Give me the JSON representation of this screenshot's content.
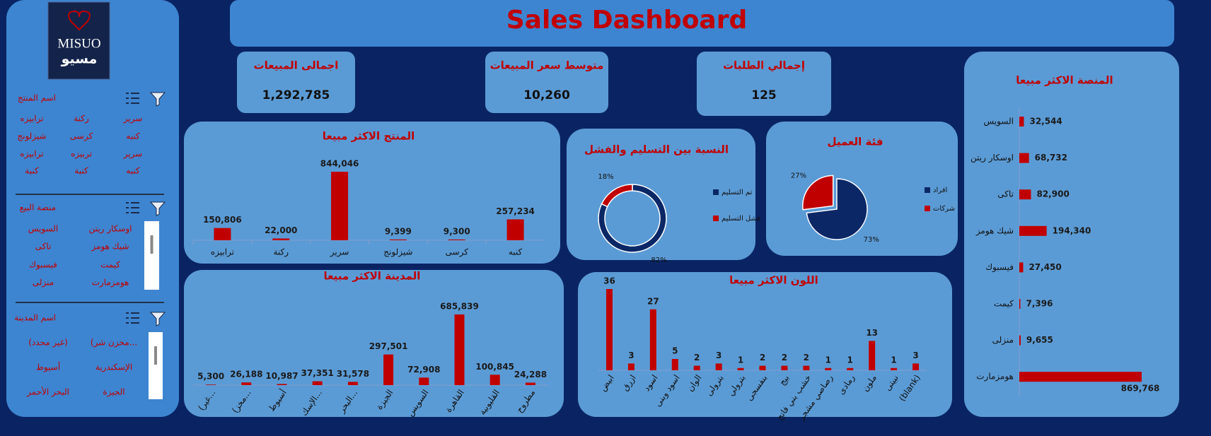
{
  "header": {
    "title": "Sales Dashboard"
  },
  "logo": {
    "name": "MISUO",
    "name_ar": "مسيو"
  },
  "slicers": [
    {
      "title": "اسم المنتج",
      "items": [
        "سرير",
        "ركنة",
        "ترابيزه",
        "كنبه",
        "كرسى",
        "شيزلونج",
        "سرير",
        "تربيزه",
        "ترابيزه",
        "كنبه",
        "كنبة",
        "كنبة"
      ]
    },
    {
      "title": "منصة البيع",
      "items": [
        "اوسكار ريتن",
        "السويس",
        "شيك هومز",
        "تاكى",
        "كيمت",
        "فيسبوك",
        "هومزمارت",
        "منزلى"
      ]
    },
    {
      "title": "اسم المدينة",
      "items": [
        "(مخزن شر...",
        "(غير محدد)",
        "الإسكندرية",
        "أسيوط",
        "الجيزة",
        "البحر الأحمر"
      ]
    }
  ],
  "kpis": [
    {
      "title": "اجمالى المبيعات",
      "value": "1,292,785"
    },
    {
      "title": "متوسط سعر المبيعات",
      "value": "10,260"
    },
    {
      "title": "إجمالي الطلبات",
      "value": "125"
    }
  ],
  "chart_data": [
    {
      "type": "bar",
      "title": "المنتج الاكثر مبيعا",
      "color": "#c00000",
      "categories": [
        "ترابيزه",
        "ركنة",
        "سرير",
        "شيزلونج",
        "كرسى",
        "كنبه"
      ],
      "values": [
        150806,
        22000,
        844046,
        9399,
        9300,
        257234
      ],
      "value_labels": [
        "150,806",
        "22,000",
        "844,046",
        "9,399",
        "9,300",
        "257,234"
      ]
    },
    {
      "type": "donut",
      "title": "النسبة بين التسليم والفشل",
      "categories": [
        "تم التسليم",
        "فشل التسليم"
      ],
      "values": [
        82,
        18
      ],
      "value_labels": [
        "82%",
        "18%"
      ],
      "colors": [
        "#0b2766",
        "#c00000"
      ]
    },
    {
      "type": "pie",
      "title": "فئة العميل",
      "categories": [
        "افراد",
        "شركات"
      ],
      "values": [
        73,
        27
      ],
      "value_labels": [
        "73%",
        "27%"
      ],
      "colors": [
        "#0b2766",
        "#c00000"
      ]
    },
    {
      "type": "bar",
      "title": "المدينة الاكثر مبيعا",
      "color": "#c00000",
      "categories": [
        "(غير...",
        "(مخز...",
        "أسيوط",
        "الإسك...",
        "البحر...",
        "الجيزة",
        "السويس",
        "القاهرة",
        "القليوبية",
        "مطروح"
      ],
      "values": [
        5300,
        26188,
        10987,
        37351,
        31578,
        297501,
        72908,
        685839,
        100845,
        24288
      ],
      "value_labels": [
        "5,300",
        "26,188",
        "10,987",
        "37,351",
        "31,578",
        "297,501",
        "72,908",
        "685,839",
        "100,845",
        "24,288"
      ]
    },
    {
      "type": "bar",
      "title": "اللون الاكثر مبيعا",
      "color": "#c00000",
      "categories": [
        "ابيض",
        "ازرق",
        "اسود",
        "اسود وبنى",
        "الوان",
        "بترولى",
        "بترولي",
        "بنفسجى",
        "بيج",
        "خشب بني فاتح",
        "رصاصي مشجر",
        "رمادى",
        "ملون",
        "نبيتى",
        "(blank)"
      ],
      "values": [
        36,
        3,
        27,
        5,
        2,
        3,
        1,
        2,
        2,
        2,
        1,
        1,
        13,
        1,
        3
      ]
    },
    {
      "type": "hbar",
      "title": "المنصة الاكثر مبيعا",
      "color": "#c00000",
      "categories": [
        "السويس",
        "اوسكار ريتن",
        "تاكى",
        "شيك هومز",
        "فيسبوك",
        "كيمت",
        "منزلى",
        "هومزمارت"
      ],
      "values": [
        32544,
        68732,
        82900,
        194340,
        27450,
        7396,
        9655,
        869768
      ],
      "value_labels": [
        "32,544",
        "68,732",
        "82,900",
        "194,340",
        "27,450",
        "7,396",
        "9,655",
        "869,768"
      ]
    }
  ]
}
